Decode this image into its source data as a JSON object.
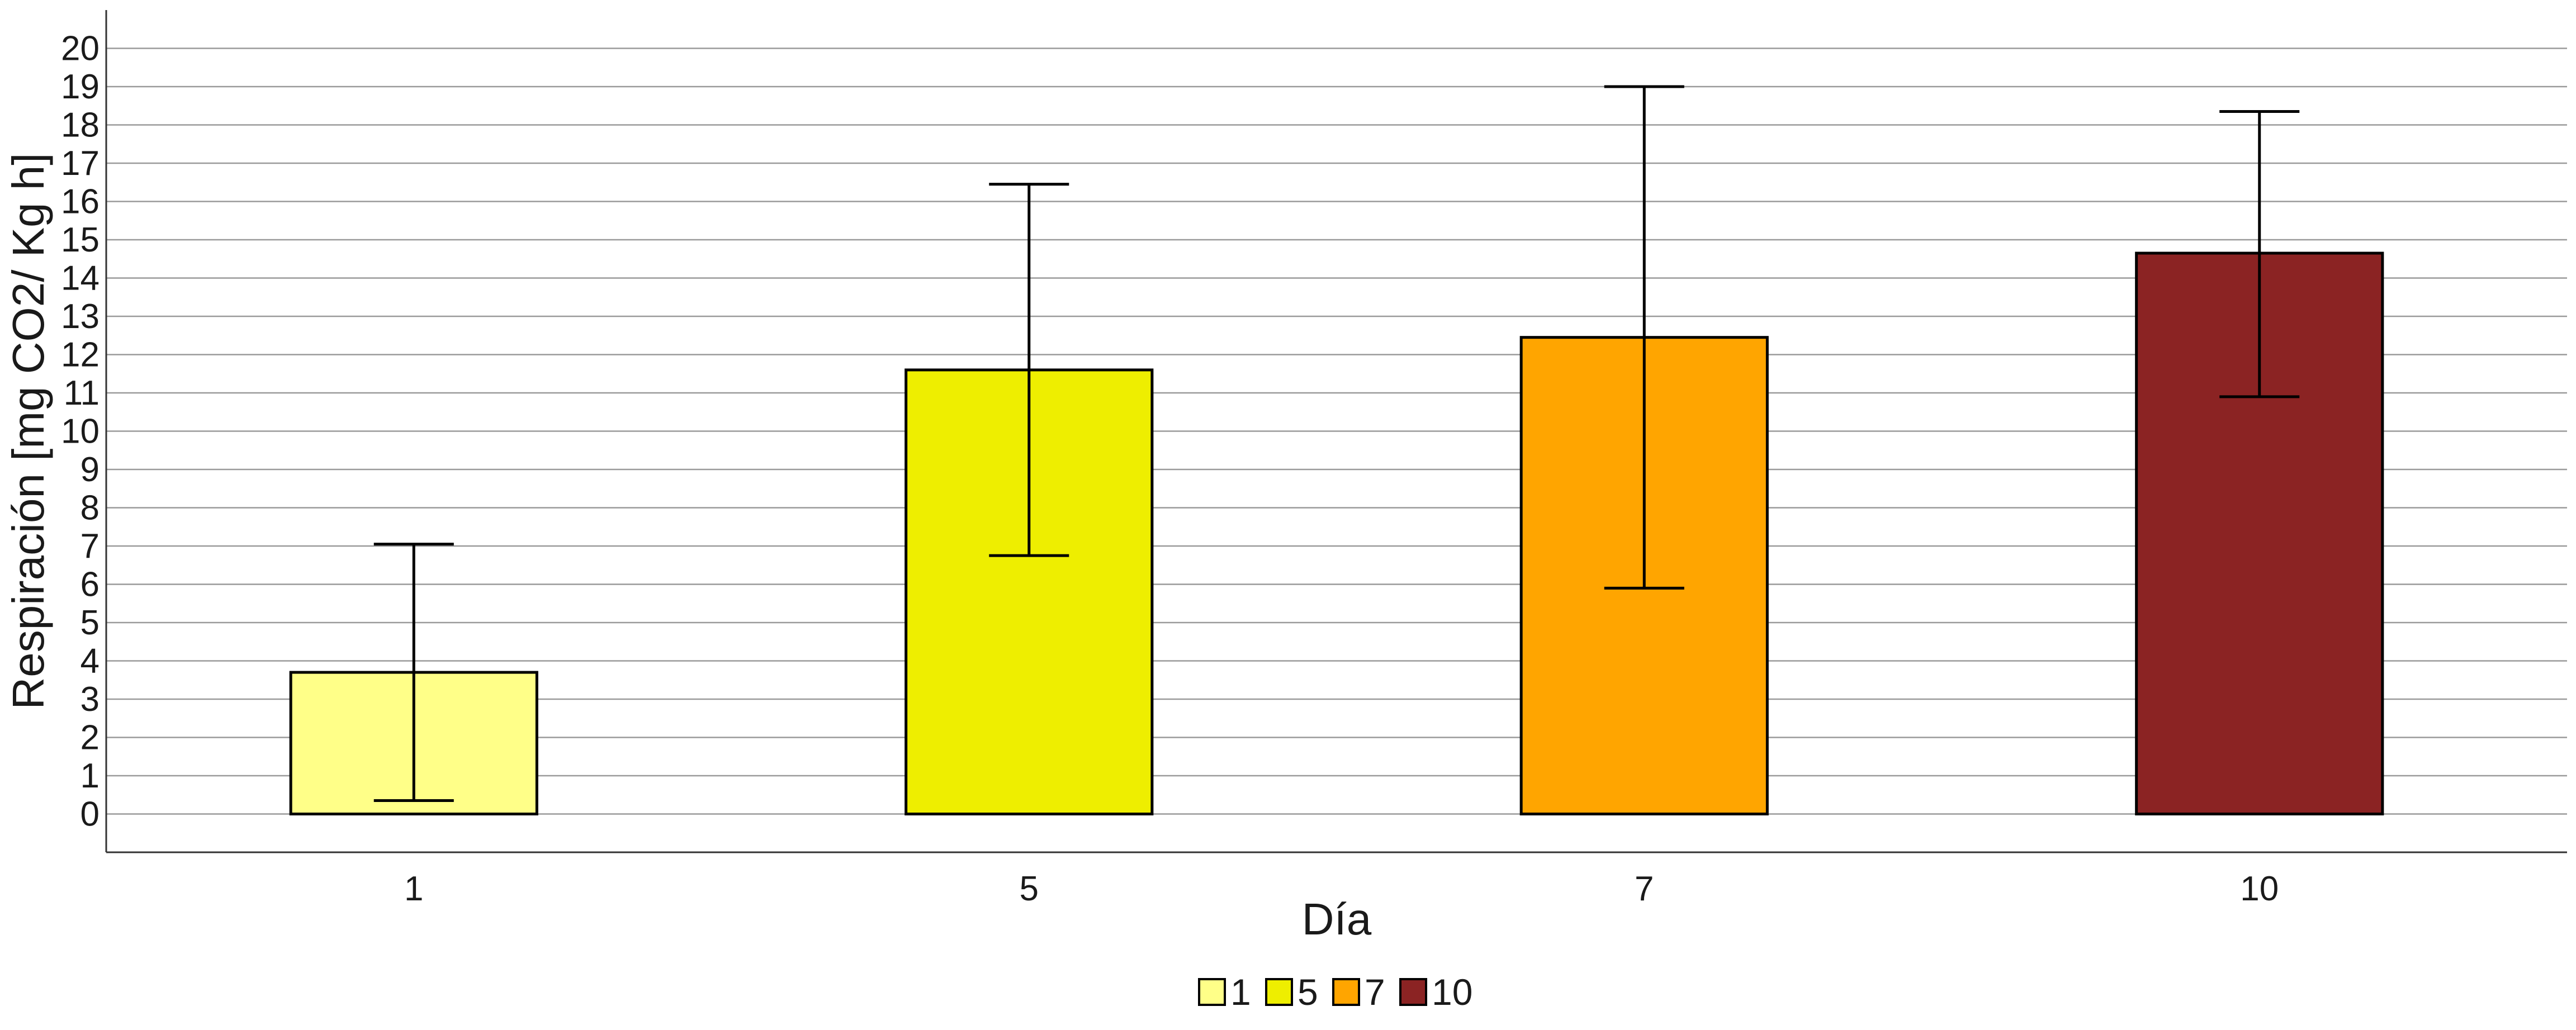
{
  "chart_data": {
    "type": "bar",
    "title": "",
    "xlabel": "Día",
    "ylabel": "Respiración [mg CO2/ Kg h]",
    "categories": [
      "1",
      "5",
      "7",
      "10"
    ],
    "values": [
      3.7,
      11.6,
      12.45,
      14.65
    ],
    "error_low": [
      0.35,
      6.75,
      5.9,
      10.9
    ],
    "error_high": [
      7.05,
      16.45,
      19.0,
      18.35
    ],
    "colors": [
      "#FFFF88",
      "#EEEE00",
      "#FFA500",
      "#8B2323"
    ],
    "ylim": [
      -1,
      21
    ],
    "yticks": [
      0,
      1,
      2,
      3,
      4,
      5,
      6,
      7,
      8,
      9,
      10,
      11,
      12,
      13,
      14,
      15,
      16,
      17,
      18,
      19,
      20
    ],
    "grid": "horizontal",
    "legend": {
      "position": "bottom",
      "entries": [
        "1",
        "5",
        "7",
        "10"
      ]
    }
  }
}
